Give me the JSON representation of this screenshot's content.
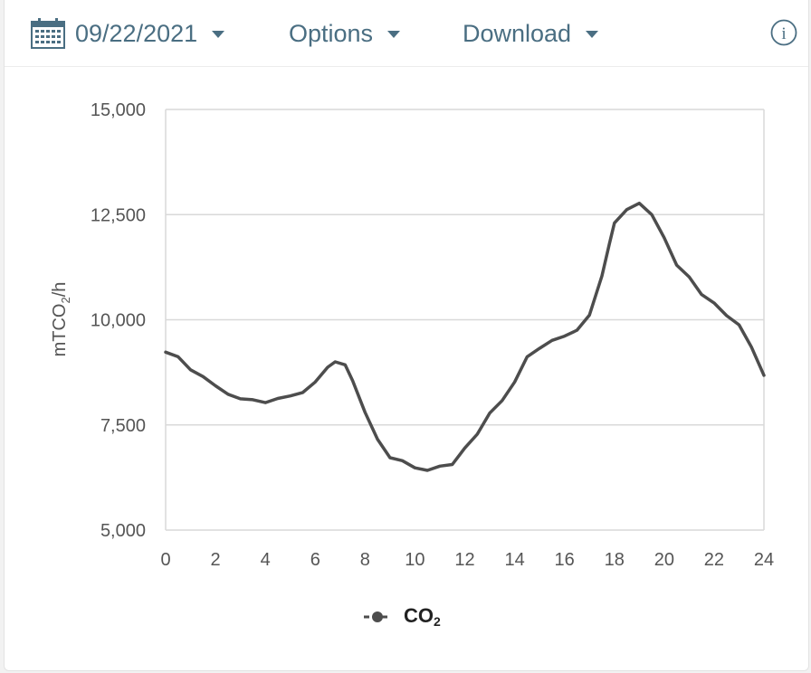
{
  "toolbar": {
    "date_label": "09/22/2021",
    "options_label": "Options",
    "download_label": "Download",
    "info_glyph": "i"
  },
  "icons": {
    "date": "calendar-icon",
    "date_caret": "chevron-down-icon",
    "options_caret": "chevron-down-icon",
    "download_caret": "chevron-down-icon",
    "info": "info-icon"
  },
  "colors": {
    "toolbar_text": "#4a6e82",
    "series_line": "#4d4d4d",
    "grid": "#d9d9d9",
    "axis_text": "#555555"
  },
  "chart_data": {
    "type": "line",
    "ylabel_main": "mTCO",
    "ylabel_sub": "2",
    "ylabel_tail": "/h",
    "xlim": [
      0,
      24
    ],
    "ylim": [
      5000,
      15000
    ],
    "x_ticks": [
      0,
      2,
      4,
      6,
      8,
      10,
      12,
      14,
      16,
      18,
      20,
      22,
      24
    ],
    "y_ticks": [
      5000,
      7500,
      10000,
      12500,
      15000
    ],
    "x_tick_labels": [
      "0",
      "2",
      "4",
      "6",
      "8",
      "10",
      "12",
      "14",
      "16",
      "18",
      "20",
      "22",
      "24"
    ],
    "y_tick_labels": [
      "5,000",
      "7,500",
      "10,000",
      "12,500",
      "15,000"
    ],
    "grid": "horizontal",
    "legend": {
      "position": "bottom-center",
      "main": "CO",
      "sub": "2"
    },
    "series": [
      {
        "x": [
          0,
          0.5,
          1,
          1.5,
          2,
          2.5,
          3,
          3.5,
          4,
          4.5,
          5,
          5.5,
          6,
          6.5,
          6.8,
          7.2,
          7.5,
          8,
          8.5,
          9,
          9.5,
          10,
          10.5,
          11,
          11.5,
          12,
          12.5,
          13,
          13.5,
          14,
          14.5,
          15,
          15.5,
          16,
          16.5,
          17,
          17.5,
          17.8,
          18,
          18.5,
          19,
          19.5,
          20,
          20.5,
          21,
          21.5,
          22,
          22.5,
          23,
          23.5,
          24
        ],
        "y": [
          9230,
          9120,
          8810,
          8650,
          8430,
          8230,
          8120,
          8100,
          8030,
          8130,
          8190,
          8270,
          8520,
          8870,
          9000,
          8930,
          8550,
          7800,
          7160,
          6720,
          6650,
          6480,
          6420,
          6520,
          6560,
          6950,
          7280,
          7780,
          8080,
          8520,
          9120,
          9320,
          9510,
          9610,
          9750,
          10110,
          11040,
          11800,
          12300,
          12620,
          12770,
          12500,
          11950,
          11300,
          11020,
          10600,
          10400,
          10100,
          9880,
          9350,
          8680
        ]
      }
    ]
  }
}
